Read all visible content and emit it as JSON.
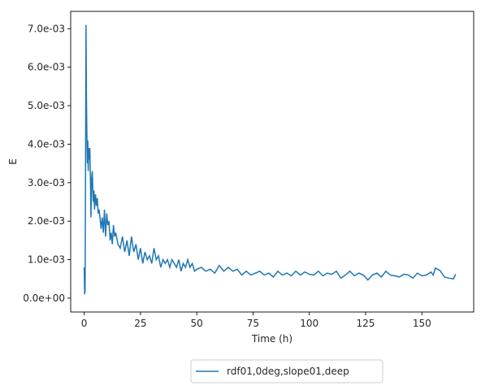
{
  "chart_data": {
    "type": "line",
    "xlabel": "Time (h)",
    "ylabel": "E",
    "xlim": [
      -6,
      173
    ],
    "ylim": [
      -0.00036,
      0.00745
    ],
    "xticks": [
      0,
      25,
      50,
      75,
      100,
      125,
      150
    ],
    "xtick_labels": [
      "0",
      "25",
      "50",
      "75",
      "100",
      "125",
      "150"
    ],
    "yticks": [
      0.0,
      0.001,
      0.002,
      0.003,
      0.004,
      0.005,
      0.006,
      0.007
    ],
    "ytick_labels": [
      "0.0e+00",
      "1.0e-03",
      "2.0e-03",
      "3.0e-03",
      "4.0e-03",
      "5.0e-03",
      "6.0e-03",
      "7.0e-03"
    ],
    "legend_placement": "below plot, center",
    "grid": false,
    "series": [
      {
        "name": "rdf01,0deg,slope01,deep",
        "color": "#1f77b4",
        "x": [
          0.0,
          0.2,
          0.4,
          0.6,
          0.8,
          1.0,
          1.2,
          1.4,
          1.6,
          1.8,
          2.0,
          2.2,
          2.5,
          2.8,
          3.0,
          3.3,
          3.6,
          3.8,
          4.0,
          4.3,
          4.6,
          5.0,
          5.4,
          5.8,
          6.2,
          6.6,
          7.0,
          7.5,
          8.0,
          8.5,
          9.0,
          9.5,
          10.0,
          10.5,
          11.0,
          11.5,
          12.0,
          12.5,
          13.0,
          13.5,
          14.0,
          15.0,
          16.0,
          17.0,
          18.0,
          19.0,
          20.0,
          21.0,
          22.0,
          23.0,
          24.0,
          25.0,
          26.0,
          27.0,
          28.0,
          29.0,
          30.0,
          31.0,
          32.0,
          33.0,
          34.0,
          35.0,
          36.0,
          37.0,
          38.0,
          39.0,
          40.0,
          41.0,
          42.0,
          43.0,
          44.0,
          45.0,
          46.0,
          47.0,
          48.0,
          49.0,
          50.0,
          52.0,
          54.0,
          56.0,
          58.0,
          60.0,
          62.0,
          64.0,
          66.0,
          68.0,
          70.0,
          72.0,
          74.0,
          76.0,
          78.0,
          80.0,
          82.0,
          84.0,
          86.0,
          88.0,
          90.0,
          92.0,
          94.0,
          96.0,
          98.0,
          100.0,
          102.0,
          104.0,
          106.0,
          108.0,
          110.0,
          112.0,
          114.0,
          116.0,
          118.0,
          120.0,
          122.0,
          124.0,
          126.0,
          128.0,
          130.0,
          132.0,
          134.0,
          136.0,
          138.0,
          140.0,
          142.0,
          144.0,
          146.0,
          148.0,
          150.0,
          152.0,
          154.0,
          155.0,
          156.0,
          158.0,
          160.0,
          162.0,
          164.0,
          165.0
        ],
        "y": [
          0.0008,
          0.0001,
          0.0002,
          0.0033,
          0.0071,
          0.0052,
          0.0042,
          0.0035,
          0.0041,
          0.0033,
          0.0039,
          0.0036,
          0.0039,
          0.003,
          0.0021,
          0.0031,
          0.0033,
          0.0029,
          0.0025,
          0.0028,
          0.0023,
          0.0027,
          0.0024,
          0.0026,
          0.0022,
          0.0023,
          0.0021,
          0.0018,
          0.0021,
          0.0017,
          0.0023,
          0.0016,
          0.0022,
          0.0019,
          0.002,
          0.0015,
          0.0017,
          0.0014,
          0.0019,
          0.0016,
          0.0017,
          0.0014,
          0.0013,
          0.0016,
          0.0012,
          0.0015,
          0.0011,
          0.0016,
          0.0012,
          0.0014,
          0.001,
          0.0013,
          0.0009,
          0.0012,
          0.001,
          0.0011,
          0.0009,
          0.0013,
          0.001,
          0.0011,
          0.0008,
          0.001,
          0.0009,
          0.001,
          0.0008,
          0.001,
          0.0009,
          0.0008,
          0.001,
          0.0007,
          0.0009,
          0.0008,
          0.001,
          0.0008,
          0.0009,
          0.0007,
          0.00075,
          0.0008,
          0.0007,
          0.00075,
          0.00065,
          0.00085,
          0.0007,
          0.0008,
          0.0007,
          0.00075,
          0.0006,
          0.0007,
          0.0006,
          0.00065,
          0.0007,
          0.0006,
          0.00065,
          0.00055,
          0.0007,
          0.0006,
          0.00065,
          0.00058,
          0.0007,
          0.0006,
          0.00068,
          0.00062,
          0.0006,
          0.0007,
          0.00058,
          0.00065,
          0.00062,
          0.0007,
          0.00052,
          0.0006,
          0.0007,
          0.00058,
          0.00065,
          0.0006,
          0.00047,
          0.0006,
          0.00065,
          0.00055,
          0.0007,
          0.0006,
          0.00058,
          0.00055,
          0.00062,
          0.0006,
          0.00052,
          0.00065,
          0.00058,
          0.0006,
          0.00068,
          0.0006,
          0.00078,
          0.00072,
          0.00055,
          0.00052,
          0.0005,
          0.00062
        ]
      }
    ]
  }
}
